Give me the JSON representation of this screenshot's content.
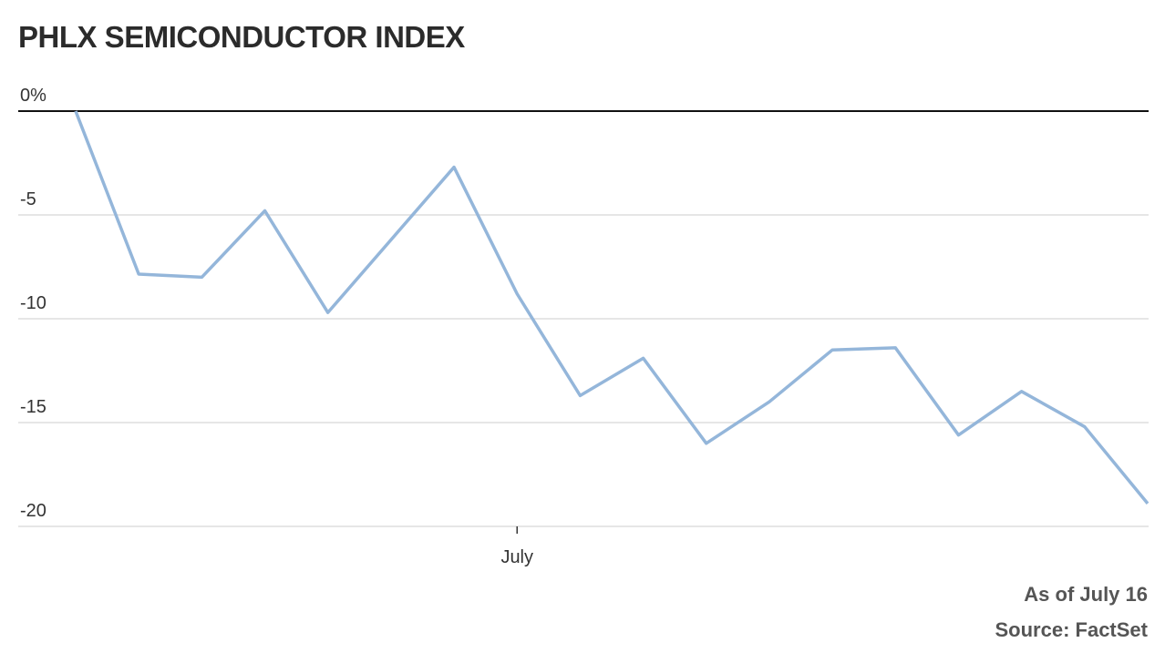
{
  "chart_data": {
    "type": "line",
    "title": "PHLX SEMICONDUCTOR INDEX",
    "categories": [
      null,
      null,
      null,
      null,
      null,
      null,
      null,
      "July",
      null,
      null,
      null,
      null,
      null,
      null,
      null,
      null,
      null,
      null
    ],
    "series": [
      {
        "name": "PHLX Semiconductor Index",
        "color": "#94b6da",
        "values": [
          0,
          -7.85,
          -8.0,
          -4.8,
          -9.7,
          -6.2,
          -2.7,
          -8.8,
          -13.7,
          -11.9,
          -16.0,
          -14.0,
          -11.5,
          -11.4,
          -15.6,
          -13.5,
          -15.2,
          -18.9
        ]
      }
    ],
    "ylim": [
      -20,
      0
    ],
    "yticks": [
      {
        "value": 0,
        "label": "0%"
      },
      -5,
      -10,
      -15,
      -20
    ],
    "grid": true,
    "notes": [
      "As of July 16",
      "Source: FactSet"
    ]
  }
}
